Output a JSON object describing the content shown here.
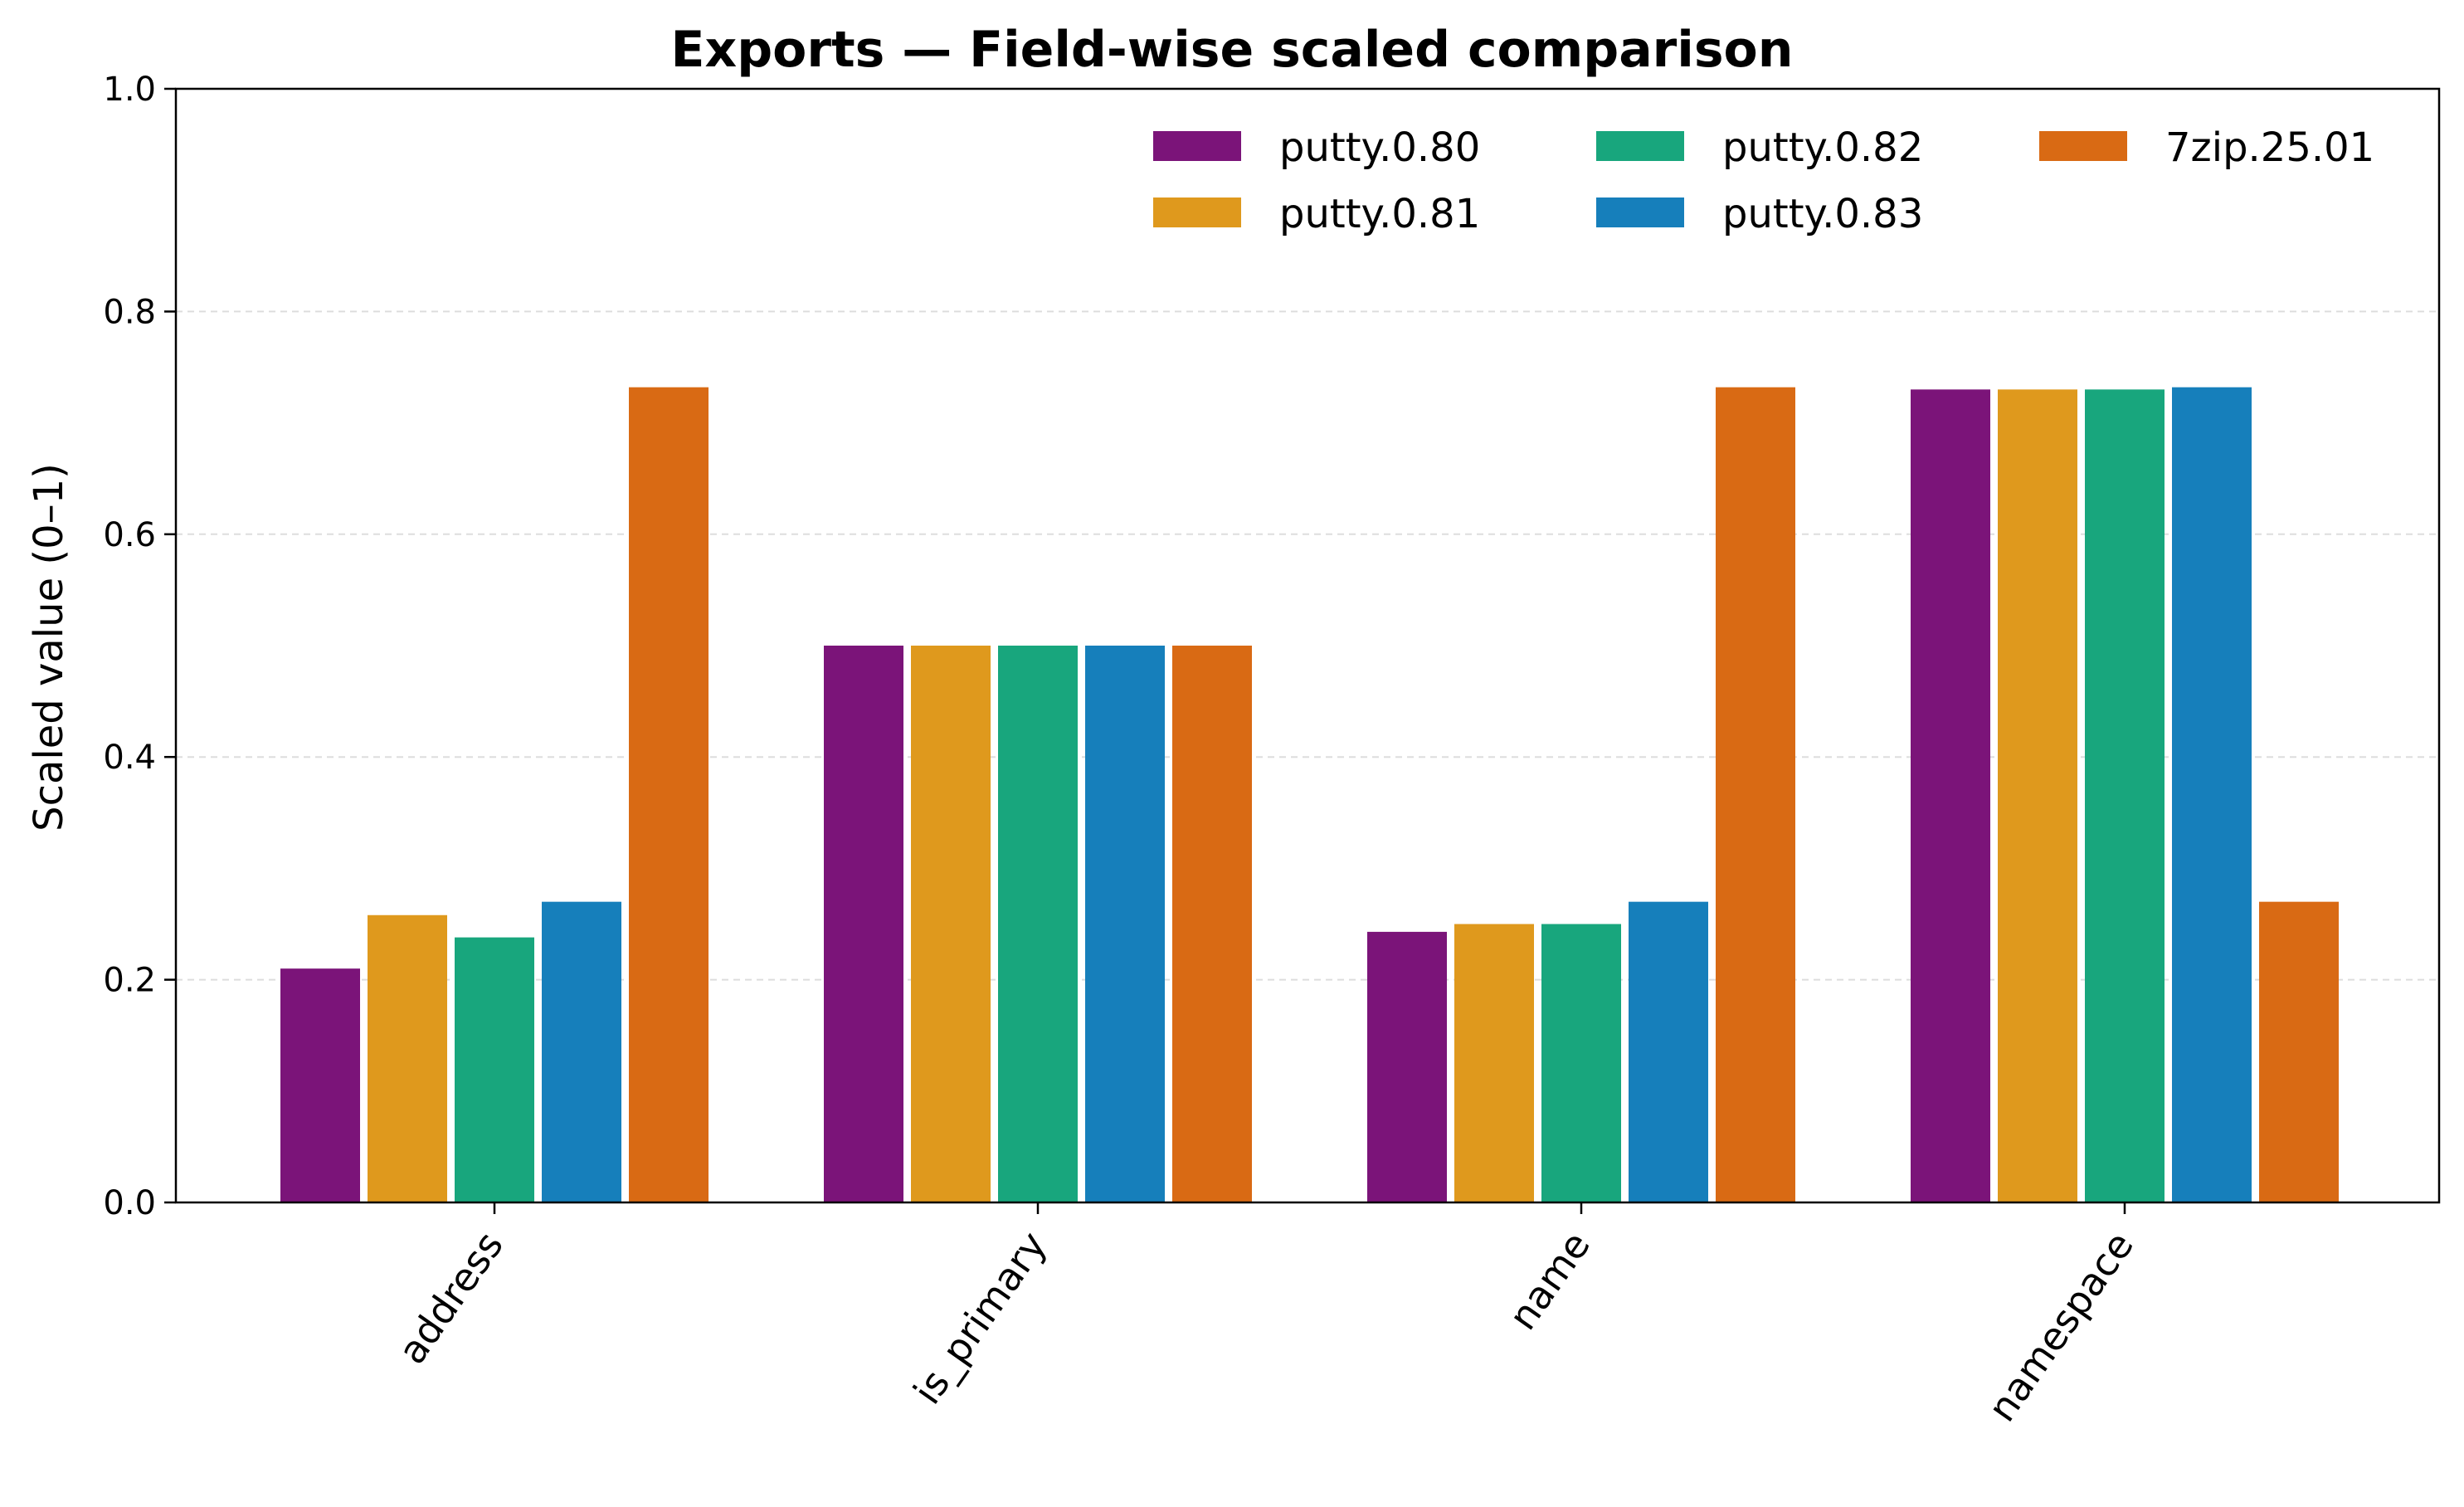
{
  "chart_data": {
    "type": "bar",
    "title": "Exports — Field-wise scaled comparison",
    "xlabel": "",
    "ylabel": "Scaled value (0–1)",
    "ylim": [
      0,
      1
    ],
    "yticks": [
      "0.0",
      "0.2",
      "0.4",
      "0.6",
      "0.8",
      "1.0"
    ],
    "grid": "horizontal dashed",
    "legend_placement": "top-right",
    "categories": [
      "address",
      "is_primary",
      "name",
      "namespace"
    ],
    "series": [
      {
        "name": "putty.0.80",
        "color": "#7b1479",
        "values": [
          0.21,
          0.5,
          0.243,
          0.73
        ]
      },
      {
        "name": "putty.0.81",
        "color": "#df991d",
        "values": [
          0.258,
          0.5,
          0.25,
          0.73
        ]
      },
      {
        "name": "putty.0.82",
        "color": "#18a67d",
        "values": [
          0.238,
          0.5,
          0.25,
          0.73
        ]
      },
      {
        "name": "putty.0.83",
        "color": "#167fbb",
        "values": [
          0.27,
          0.5,
          0.27,
          0.732
        ]
      },
      {
        "name": "7zip.25.01",
        "color": "#d96a14",
        "values": [
          0.732,
          0.5,
          0.732,
          0.27
        ]
      }
    ]
  }
}
